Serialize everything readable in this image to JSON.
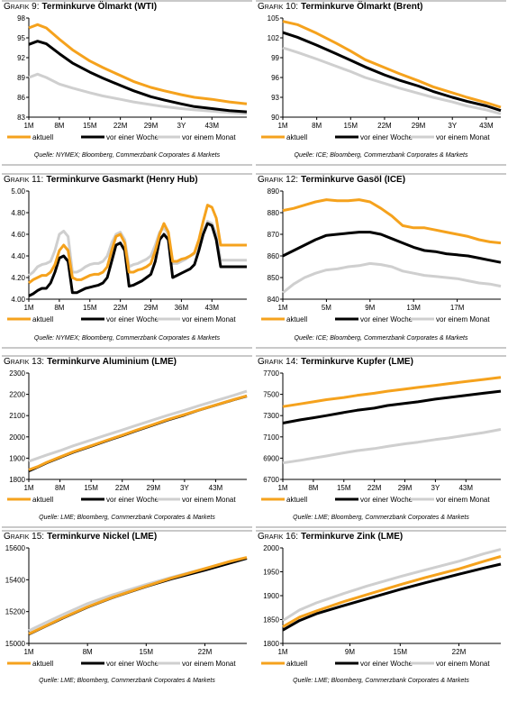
{
  "colors": {
    "aktuell": "#f5a21d",
    "woche": "#000000",
    "monat": "#cfcfcf"
  },
  "legend_labels": [
    "aktuell",
    "vor einer Woche",
    "vor einem Monat"
  ],
  "chart_data": [
    {
      "id": "g9",
      "type": "line",
      "caption": "Grafik 9:",
      "title": "Terminkurve Ölmarkt (WTI)",
      "source": "Quelle: NYMEX; Bloomberg, Commerzbank Corporates & Markets",
      "ylim": [
        83,
        98
      ],
      "yticks": [
        83,
        86,
        89,
        92,
        95,
        98
      ],
      "xlim": [
        1,
        51
      ],
      "xticks": [
        1,
        8,
        15,
        22,
        29,
        36,
        43
      ],
      "xtick_labels": [
        "1M",
        "8M",
        "15M",
        "22M",
        "29M",
        "3Y",
        "43M"
      ],
      "x": [
        1,
        3,
        5,
        8,
        11,
        15,
        18,
        22,
        25,
        29,
        32,
        36,
        39,
        43,
        47,
        51
      ],
      "series": [
        {
          "name": "aktuell",
          "values": [
            96.5,
            97.0,
            96.5,
            94.8,
            93.2,
            91.5,
            90.5,
            89.3,
            88.4,
            87.5,
            87.0,
            86.4,
            86.0,
            85.7,
            85.3,
            85.0
          ]
        },
        {
          "name": "vor einer Woche",
          "values": [
            94.0,
            94.5,
            94.1,
            92.6,
            91.2,
            89.8,
            88.9,
            87.8,
            87.0,
            86.1,
            85.6,
            85.0,
            84.6,
            84.3,
            84.0,
            83.8
          ]
        },
        {
          "name": "vor einem Monat",
          "values": [
            89.0,
            89.5,
            89.0,
            88.0,
            87.4,
            86.7,
            86.2,
            85.7,
            85.3,
            84.9,
            84.6,
            84.3,
            84.1,
            83.9,
            83.7,
            83.5
          ]
        }
      ]
    },
    {
      "id": "g10",
      "type": "line",
      "caption": "Grafik 10:",
      "title": "Terminkurve Ölmarkt (Brent)",
      "source": "Quelle: ICE; Bloomberg, Commerzbank Corporates & Markets",
      "ylim": [
        90,
        105
      ],
      "yticks": [
        90,
        93,
        96,
        99,
        102,
        105
      ],
      "xlim": [
        1,
        46
      ],
      "xticks": [
        1,
        8,
        15,
        22,
        29,
        36,
        43
      ],
      "xtick_labels": [
        "1M",
        "8M",
        "15M",
        "22M",
        "29M",
        "3Y",
        "43M"
      ],
      "x": [
        1,
        4,
        8,
        12,
        15,
        18,
        22,
        25,
        29,
        32,
        36,
        39,
        43,
        46
      ],
      "series": [
        {
          "name": "aktuell",
          "values": [
            104.5,
            104.0,
            102.7,
            101.2,
            100.0,
            98.7,
            97.5,
            96.6,
            95.5,
            94.6,
            93.7,
            93.0,
            92.2,
            91.5
          ]
        },
        {
          "name": "vor einer Woche",
          "values": [
            102.8,
            102.1,
            100.9,
            99.6,
            98.6,
            97.6,
            96.4,
            95.6,
            94.7,
            93.9,
            93.0,
            92.4,
            91.7,
            91.0
          ]
        },
        {
          "name": "vor einem Monat",
          "values": [
            100.5,
            99.8,
            98.8,
            97.7,
            96.9,
            96.0,
            95.1,
            94.4,
            93.6,
            93.0,
            92.3,
            91.7,
            91.1,
            90.5
          ]
        }
      ]
    },
    {
      "id": "g11",
      "type": "line",
      "caption": "Grafik 11:",
      "title": "Terminkurve Gasmarkt (Henry Hub)",
      "source": "Quelle: NYMEX; Bloomberg, Commerzbank Corporates & Markets",
      "ylim": [
        4.0,
        5.0
      ],
      "yticks": [
        4.0,
        4.2,
        4.4,
        4.6,
        4.8,
        5.0
      ],
      "ytick_labels": [
        "4.00",
        "4.20",
        "4.40",
        "4.60",
        "4.80",
        "5.00"
      ],
      "xlim": [
        1,
        51
      ],
      "xticks": [
        1,
        8,
        15,
        22,
        29,
        36,
        43
      ],
      "xtick_labels": [
        "1M",
        "8M",
        "15M",
        "22M",
        "29M",
        "36M",
        "43M"
      ],
      "x": [
        1,
        2,
        3,
        4,
        5,
        6,
        7,
        8,
        9,
        10,
        11,
        12,
        13,
        14,
        15,
        16,
        17,
        18,
        19,
        20,
        21,
        22,
        23,
        24,
        25,
        26,
        27,
        28,
        29,
        30,
        31,
        32,
        33,
        34,
        35,
        36,
        37,
        38,
        39,
        40,
        41,
        42,
        43,
        44,
        45,
        46,
        47,
        48,
        49,
        50,
        51
      ],
      "series": [
        {
          "name": "aktuell",
          "values": [
            4.15,
            4.18,
            4.2,
            4.22,
            4.22,
            4.25,
            4.32,
            4.45,
            4.5,
            4.45,
            4.2,
            4.18,
            4.18,
            4.2,
            4.22,
            4.23,
            4.23,
            4.25,
            4.3,
            4.45,
            4.58,
            4.6,
            4.52,
            4.25,
            4.25,
            4.27,
            4.28,
            4.3,
            4.33,
            4.45,
            4.6,
            4.7,
            4.62,
            4.35,
            4.35,
            4.37,
            4.38,
            4.4,
            4.43,
            4.55,
            4.72,
            4.87,
            4.85,
            4.75,
            4.5,
            4.5,
            4.5,
            4.5,
            4.5,
            4.5,
            4.5
          ]
        },
        {
          "name": "vor einer Woche",
          "values": [
            4.03,
            4.05,
            4.08,
            4.1,
            4.1,
            4.15,
            4.25,
            4.38,
            4.4,
            4.35,
            4.06,
            4.06,
            4.08,
            4.1,
            4.11,
            4.12,
            4.13,
            4.15,
            4.2,
            4.35,
            4.5,
            4.52,
            4.45,
            4.12,
            4.13,
            4.15,
            4.17,
            4.2,
            4.23,
            4.35,
            4.55,
            4.6,
            4.55,
            4.2,
            4.22,
            4.24,
            4.26,
            4.28,
            4.32,
            4.45,
            4.6,
            4.7,
            4.68,
            4.55,
            4.3,
            4.3,
            4.3,
            4.3,
            4.3,
            4.3,
            4.3
          ]
        },
        {
          "name": "vor einem Monat",
          "values": [
            4.22,
            4.25,
            4.3,
            4.32,
            4.33,
            4.35,
            4.45,
            4.6,
            4.63,
            4.58,
            4.25,
            4.25,
            4.27,
            4.3,
            4.32,
            4.33,
            4.33,
            4.35,
            4.4,
            4.52,
            4.6,
            4.62,
            4.55,
            4.3,
            4.32,
            4.33,
            4.35,
            4.37,
            4.4,
            4.5,
            4.62,
            4.66,
            4.6,
            4.33,
            4.33,
            4.35,
            4.37,
            4.4,
            4.42,
            4.52,
            4.62,
            4.72,
            4.7,
            4.6,
            4.36,
            4.36,
            4.36,
            4.36,
            4.36,
            4.36,
            4.36
          ]
        }
      ]
    },
    {
      "id": "g12",
      "type": "line",
      "caption": "Grafik 12:",
      "title": "Terminkurve Gasöl (ICE)",
      "source": "Quelle: ICE; Bloomberg, Commerzbank Corporates & Markets",
      "ylim": [
        840,
        890
      ],
      "yticks": [
        840,
        850,
        860,
        870,
        880,
        890
      ],
      "xlim": [
        1,
        21
      ],
      "xticks": [
        1,
        5,
        9,
        13,
        17
      ],
      "xtick_labels": [
        "1M",
        "5M",
        "9M",
        "13M",
        "17M"
      ],
      "x": [
        1,
        2,
        3,
        4,
        5,
        6,
        7,
        8,
        9,
        10,
        11,
        12,
        13,
        14,
        15,
        16,
        17,
        18,
        19,
        20,
        21
      ],
      "series": [
        {
          "name": "aktuell",
          "values": [
            881,
            882,
            883.5,
            885,
            886,
            885.5,
            885.5,
            886,
            885,
            882,
            878.5,
            874,
            873,
            873,
            872,
            871,
            870,
            869,
            867.5,
            866.5,
            866
          ]
        },
        {
          "name": "vor einer Woche",
          "values": [
            860,
            862.5,
            865,
            867.5,
            869.5,
            870,
            870.5,
            871,
            871,
            870,
            868,
            866,
            864,
            862.5,
            862,
            861,
            860.5,
            860,
            859,
            858,
            857
          ]
        },
        {
          "name": "vor einem Monat",
          "values": [
            843,
            847,
            850,
            852,
            853.5,
            854,
            855,
            855.5,
            856.5,
            856,
            855,
            853,
            852,
            851,
            850.5,
            850,
            849.5,
            848.5,
            847.5,
            847,
            846
          ]
        }
      ]
    },
    {
      "id": "g13",
      "type": "line",
      "caption": "Grafik 13:",
      "title": "Terminkurve Aluminium (LME)",
      "source": "Quelle: LME; Bloomberg, Commerzbank Corporates & Markets",
      "ylim": [
        1800,
        2300
      ],
      "yticks": [
        1800,
        1900,
        2000,
        2100,
        2200,
        2300
      ],
      "xlim": [
        1,
        50
      ],
      "xticks": [
        1,
        8,
        15,
        22,
        29,
        36,
        43
      ],
      "xtick_labels": [
        "1M",
        "8M",
        "15M",
        "22M",
        "29M",
        "3Y",
        "43M"
      ],
      "x": [
        1,
        3,
        5,
        8,
        11,
        15,
        18,
        22,
        25,
        29,
        32,
        36,
        39,
        43,
        47,
        50
      ],
      "series": [
        {
          "name": "aktuell",
          "values": [
            1845,
            1860,
            1880,
            1905,
            1930,
            1958,
            1980,
            2008,
            2030,
            2058,
            2080,
            2105,
            2125,
            2150,
            2175,
            2193
          ]
        },
        {
          "name": "vor einer Woche",
          "values": [
            1840,
            1858,
            1878,
            1903,
            1928,
            1956,
            1978,
            2006,
            2028,
            2056,
            2078,
            2103,
            2124,
            2149,
            2174,
            2192
          ]
        },
        {
          "name": "vor einem Monat",
          "values": [
            1885,
            1900,
            1915,
            1935,
            1958,
            1985,
            2006,
            2032,
            2053,
            2080,
            2100,
            2125,
            2145,
            2170,
            2195,
            2215
          ]
        }
      ]
    },
    {
      "id": "g14",
      "type": "line",
      "caption": "Grafik 14:",
      "title": "Terminkurve Kupfer (LME)",
      "source": "Quelle: LME; Bloomberg, Commerzbank Corporates & Markets",
      "ylim": [
        6700,
        7700
      ],
      "yticks": [
        6700,
        6900,
        7100,
        7300,
        7500,
        7700
      ],
      "xlim": [
        1,
        51
      ],
      "xticks": [
        1,
        8,
        15,
        22,
        29,
        36,
        43
      ],
      "xtick_labels": [
        "1M",
        "8M",
        "15M",
        "22M",
        "29M",
        "3Y",
        "43M"
      ],
      "x": [
        1,
        5,
        8,
        11,
        15,
        18,
        22,
        25,
        29,
        32,
        36,
        39,
        43,
        47,
        51
      ],
      "series": [
        {
          "name": "aktuell",
          "values": [
            7385,
            7410,
            7430,
            7450,
            7470,
            7490,
            7510,
            7530,
            7550,
            7565,
            7585,
            7600,
            7620,
            7640,
            7660
          ]
        },
        {
          "name": "vor einer Woche",
          "values": [
            7230,
            7260,
            7280,
            7300,
            7330,
            7350,
            7370,
            7395,
            7415,
            7430,
            7455,
            7470,
            7490,
            7510,
            7530
          ]
        },
        {
          "name": "vor einem Monat",
          "values": [
            6855,
            6880,
            6900,
            6920,
            6950,
            6970,
            6990,
            7010,
            7035,
            7050,
            7075,
            7090,
            7115,
            7140,
            7170
          ]
        }
      ]
    },
    {
      "id": "g15",
      "type": "line",
      "caption": "Grafik 15:",
      "title": "Terminkurve Nickel (LME)",
      "source": "Quelle: LME; Bloomberg, Commerzbank Corporates & Markets",
      "ylim": [
        15000,
        15600
      ],
      "yticks": [
        15000,
        15200,
        15400,
        15600
      ],
      "xlim": [
        1,
        27
      ],
      "xticks": [
        1,
        8,
        15,
        22
      ],
      "xtick_labels": [
        "1M",
        "8M",
        "15M",
        "22M"
      ],
      "x": [
        1,
        3,
        5,
        8,
        11,
        15,
        18,
        22,
        25,
        27
      ],
      "series": [
        {
          "name": "aktuell",
          "values": [
            15060,
            15110,
            15160,
            15230,
            15290,
            15360,
            15410,
            15470,
            15515,
            15540
          ]
        },
        {
          "name": "vor einer Woche",
          "values": [
            15058,
            15108,
            15158,
            15228,
            15288,
            15358,
            15405,
            15460,
            15505,
            15535
          ]
        },
        {
          "name": "vor einem Monat",
          "values": [
            15080,
            15130,
            15180,
            15250,
            15305,
            15370,
            15415,
            15470,
            15510,
            15535
          ]
        }
      ]
    },
    {
      "id": "g16",
      "type": "line",
      "caption": "Grafik 16:",
      "title": "Terminkurve Zink (LME)",
      "source": "Quelle: LME; Bloomberg, Commerzbank Corporates & Markets",
      "ylim": [
        1800,
        2000
      ],
      "yticks": [
        1800,
        1850,
        1900,
        1950,
        2000
      ],
      "xlim": [
        1,
        27
      ],
      "xticks": [
        1,
        9,
        15,
        22
      ],
      "xtick_labels": [
        "1M",
        "9M",
        "15M",
        "22M"
      ],
      "x": [
        1,
        3,
        5,
        8,
        11,
        15,
        18,
        22,
        25,
        27
      ],
      "series": [
        {
          "name": "aktuell",
          "values": [
            1835,
            1855,
            1868,
            1886,
            1902,
            1923,
            1938,
            1956,
            1972,
            1982
          ]
        },
        {
          "name": "vor einer Woche",
          "values": [
            1828,
            1848,
            1862,
            1878,
            1893,
            1913,
            1927,
            1945,
            1958,
            1966
          ]
        },
        {
          "name": "vor einem Monat",
          "values": [
            1848,
            1870,
            1885,
            1903,
            1920,
            1940,
            1954,
            1972,
            1988,
            1997
          ]
        }
      ]
    }
  ]
}
